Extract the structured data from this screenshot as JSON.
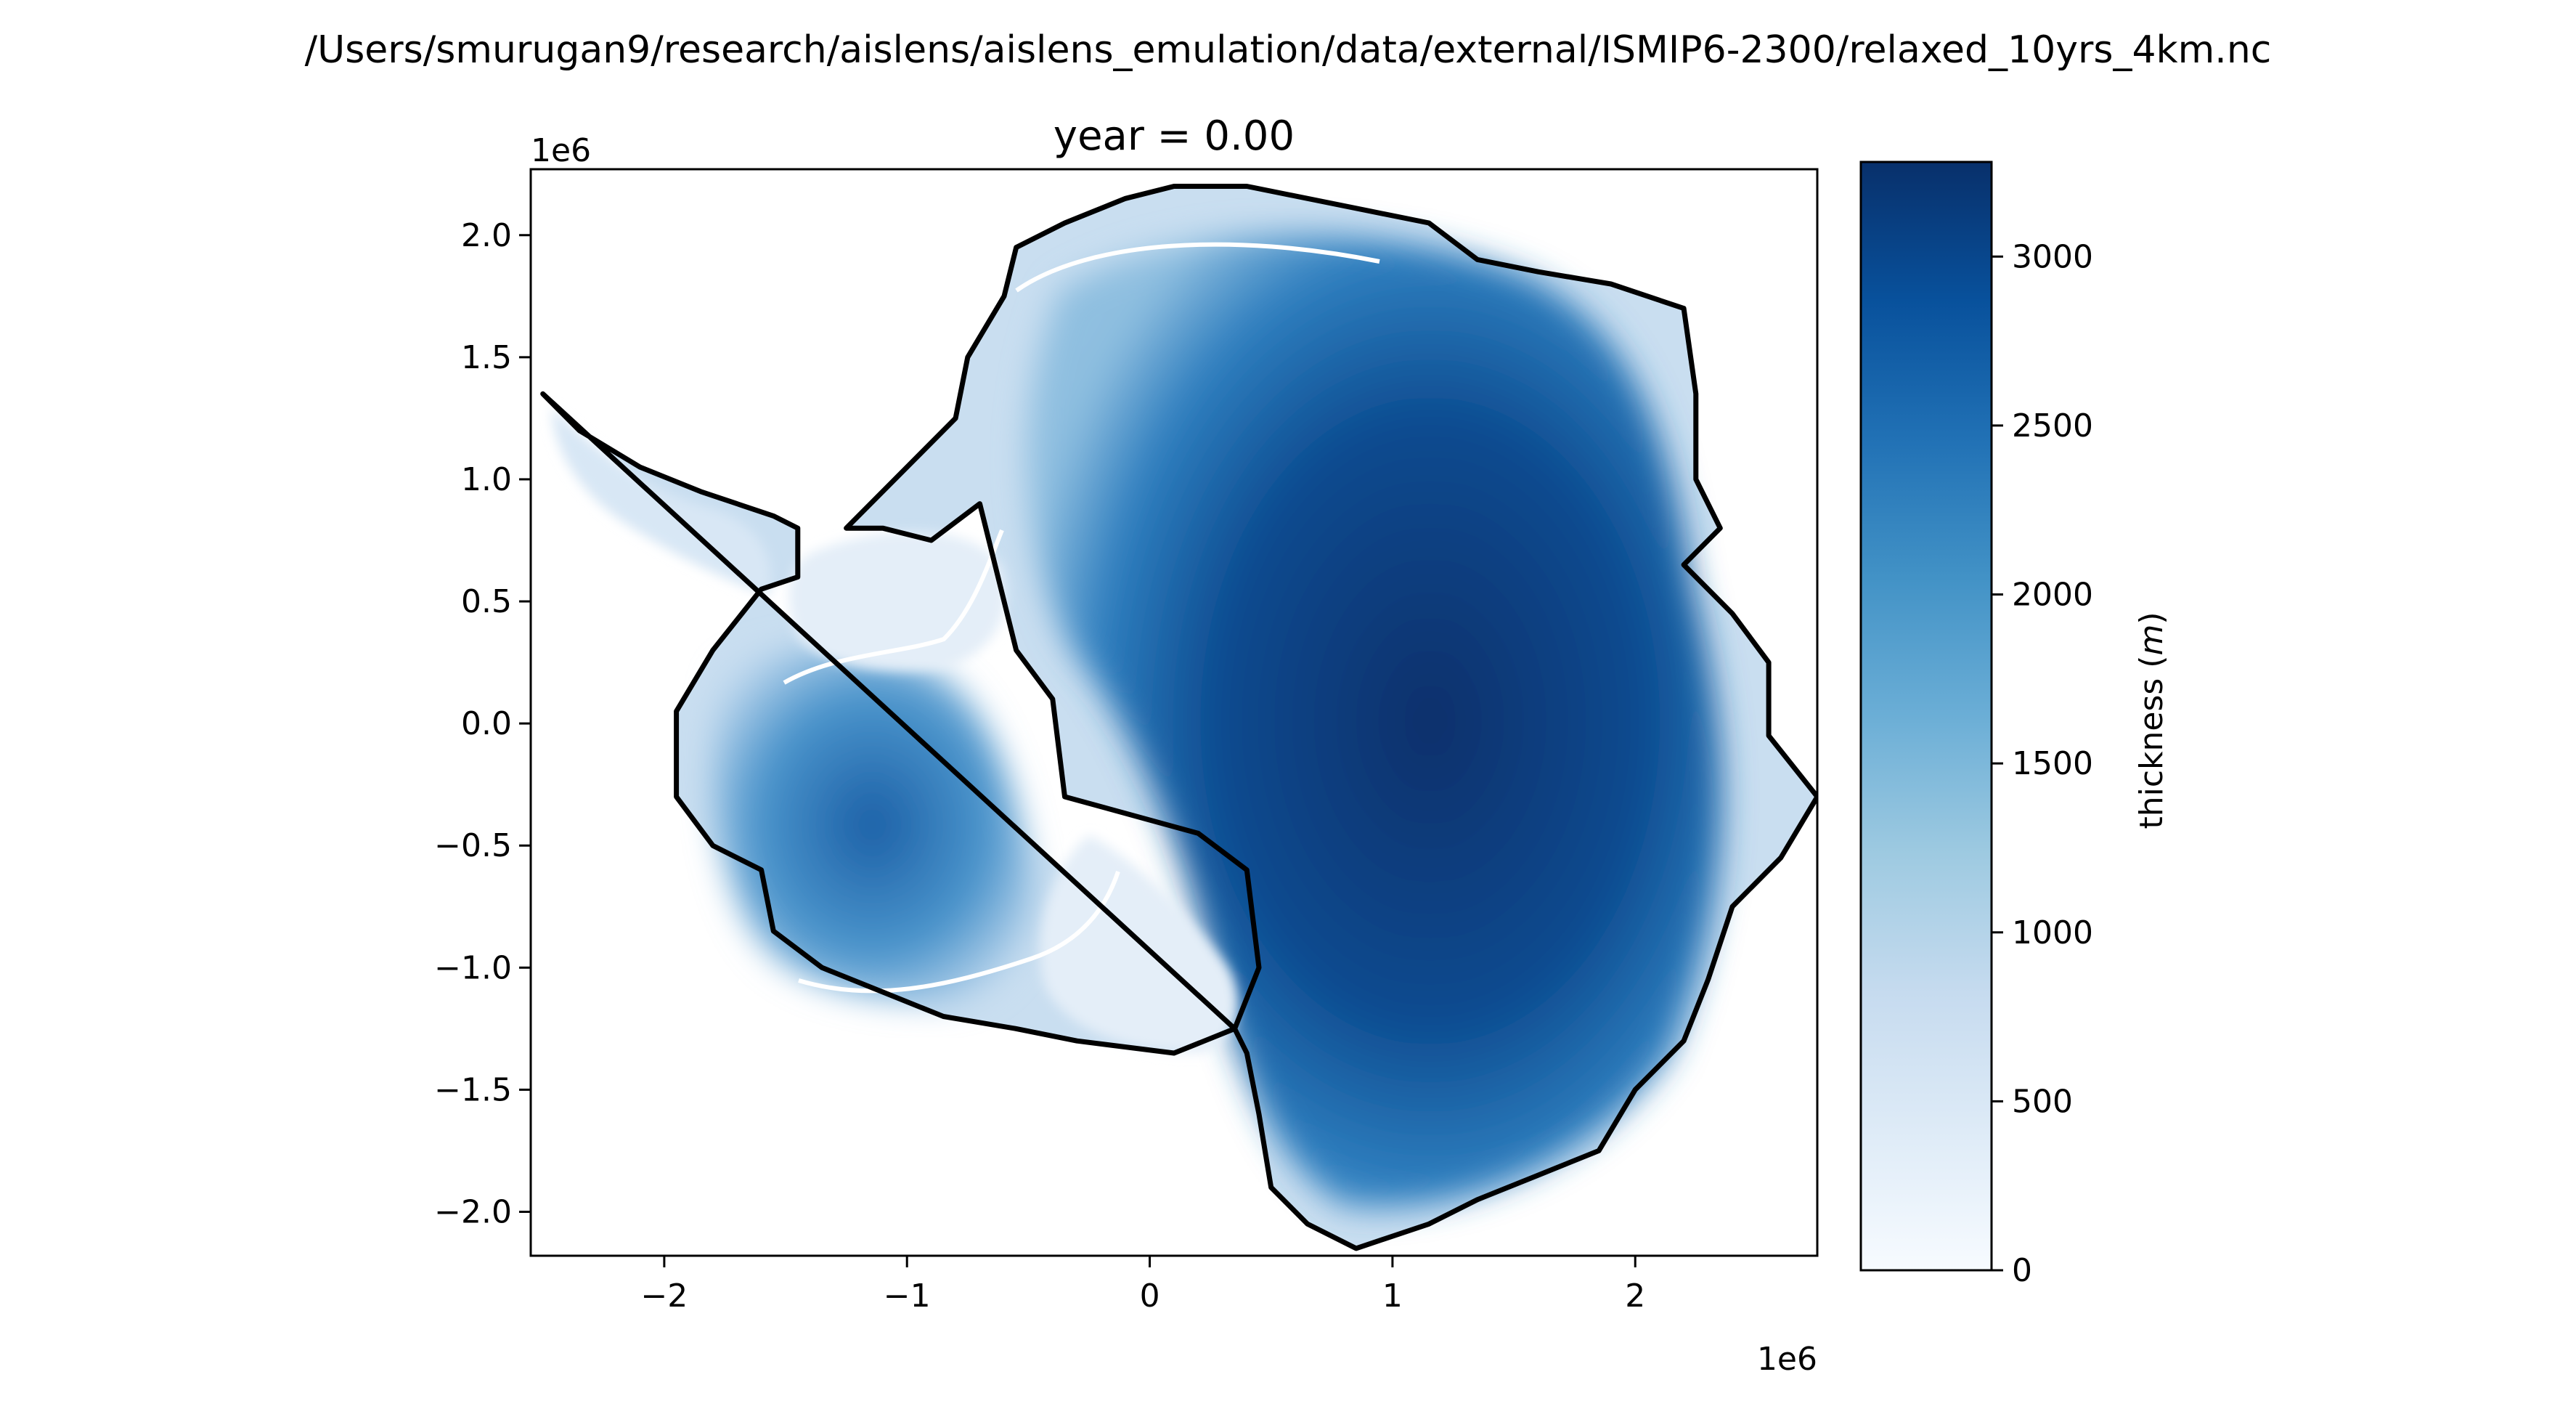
{
  "figure": {
    "suptitle": "/Users/smurugan9/research/aislens/aislens_emulation/data/external/ISMIP6-2300/relaxed_10yrs_4km.nc"
  },
  "chart_data": {
    "type": "heatmap",
    "title": "year = 0.00",
    "xlabel": "",
    "ylabel": "",
    "x_offset_label": "1e6",
    "y_offset_label": "1e6",
    "xlim": [
      -2.55,
      2.75
    ],
    "ylim": [
      -2.18,
      2.27
    ],
    "x_ticks": [
      -2,
      -1,
      0,
      1,
      2
    ],
    "x_tick_labels": [
      "−2",
      "−1",
      "0",
      "1",
      "2"
    ],
    "y_ticks": [
      -2.0,
      -1.5,
      -1.0,
      -0.5,
      0.0,
      0.5,
      1.0,
      1.5,
      2.0
    ],
    "y_tick_labels": [
      "−2.0",
      "−1.5",
      "−1.0",
      "−0.5",
      "0.0",
      "0.5",
      "1.0",
      "1.5",
      "2.0"
    ],
    "grid": false,
    "colormap": "Blues",
    "colorbar": {
      "label": "thickness (m)",
      "label_text": "thickness (",
      "label_unit": "m",
      "label_close": ")",
      "range": [
        0,
        3280
      ],
      "ticks": [
        0,
        500,
        1000,
        1500,
        2000,
        2500,
        3000
      ],
      "tick_labels": [
        "0",
        "500",
        "1000",
        "1500",
        "2000",
        "2500",
        "3000"
      ]
    },
    "grounding_line_color": "#ffffff",
    "coastline_color": "#000000",
    "coastline": [
      [
        -2.5,
        1.35
      ],
      [
        -2.35,
        1.2
      ],
      [
        -2.1,
        1.05
      ],
      [
        -1.85,
        0.95
      ],
      [
        -1.55,
        0.85
      ],
      [
        -1.45,
        0.8
      ],
      [
        -1.45,
        0.6
      ],
      [
        -1.6,
        0.55
      ],
      [
        -1.8,
        0.3
      ],
      [
        -1.95,
        0.05
      ],
      [
        -1.95,
        -0.3
      ],
      [
        -1.8,
        -0.5
      ],
      [
        -1.6,
        -0.6
      ],
      [
        -1.55,
        -0.85
      ],
      [
        -1.35,
        -1.0
      ],
      [
        -1.1,
        -1.1
      ],
      [
        -0.85,
        -1.2
      ],
      [
        -0.55,
        -1.25
      ],
      [
        -0.3,
        -1.3
      ],
      [
        0.1,
        -1.35
      ],
      [
        0.35,
        -1.25
      ],
      [
        0.45,
        -1.0
      ],
      [
        0.4,
        -0.6
      ],
      [
        0.2,
        -0.45
      ],
      [
        -0.35,
        -0.3
      ],
      [
        -0.4,
        0.1
      ],
      [
        -0.55,
        0.3
      ],
      [
        -0.7,
        0.9
      ],
      [
        -0.9,
        0.75
      ],
      [
        -1.1,
        0.8
      ],
      [
        -1.25,
        0.8
      ],
      [
        -0.8,
        1.25
      ],
      [
        -0.75,
        1.5
      ],
      [
        -0.6,
        1.75
      ],
      [
        -0.55,
        1.95
      ],
      [
        -0.35,
        2.05
      ],
      [
        -0.1,
        2.15
      ],
      [
        0.1,
        2.2
      ],
      [
        0.4,
        2.2
      ],
      [
        0.65,
        2.15
      ],
      [
        0.9,
        2.1
      ],
      [
        1.15,
        2.05
      ],
      [
        1.35,
        1.9
      ],
      [
        1.6,
        1.85
      ],
      [
        1.9,
        1.8
      ],
      [
        2.2,
        1.7
      ],
      [
        2.25,
        1.35
      ],
      [
        2.25,
        1.0
      ],
      [
        2.35,
        0.8
      ],
      [
        2.2,
        0.65
      ],
      [
        2.4,
        0.45
      ],
      [
        2.55,
        0.25
      ],
      [
        2.55,
        -0.05
      ],
      [
        2.75,
        -0.3
      ],
      [
        2.6,
        -0.55
      ],
      [
        2.4,
        -0.75
      ],
      [
        2.3,
        -1.05
      ],
      [
        2.2,
        -1.3
      ],
      [
        2.0,
        -1.5
      ],
      [
        1.85,
        -1.75
      ],
      [
        1.6,
        -1.85
      ],
      [
        1.35,
        -1.95
      ],
      [
        1.15,
        -2.05
      ],
      [
        0.85,
        -2.15
      ],
      [
        0.65,
        -2.05
      ],
      [
        0.5,
        -1.9
      ],
      [
        0.45,
        -1.6
      ],
      [
        0.4,
        -1.35
      ],
      [
        0.35,
        -1.25
      ]
    ]
  }
}
